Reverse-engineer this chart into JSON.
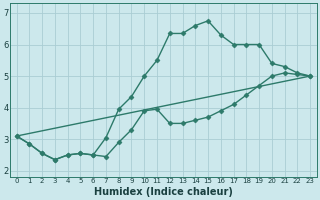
{
  "xlabel": "Humidex (Indice chaleur)",
  "bg_color": "#cce8ec",
  "grid_color": "#aacdd4",
  "line_color": "#2d7a6a",
  "xlim": [
    -0.5,
    23.5
  ],
  "ylim": [
    1.8,
    7.3
  ],
  "xticks": [
    0,
    1,
    2,
    3,
    4,
    5,
    6,
    7,
    8,
    9,
    10,
    11,
    12,
    13,
    14,
    15,
    16,
    17,
    18,
    19,
    20,
    21,
    22,
    23
  ],
  "yticks": [
    2,
    3,
    4,
    5,
    6,
    7
  ],
  "line1_x": [
    0,
    1,
    2,
    3,
    4,
    5,
    6,
    7,
    8,
    9,
    10,
    11,
    12,
    13,
    14,
    15,
    16,
    17,
    18,
    19,
    20,
    21,
    22,
    23
  ],
  "line1_y": [
    3.1,
    2.85,
    2.55,
    2.35,
    2.5,
    2.55,
    2.5,
    2.45,
    2.9,
    3.3,
    3.9,
    3.95,
    3.5,
    3.5,
    3.6,
    3.7,
    3.9,
    4.1,
    4.4,
    4.7,
    5.0,
    5.1,
    5.05,
    5.0
  ],
  "line2_x": [
    0,
    1,
    2,
    3,
    4,
    5,
    6,
    7,
    8,
    9,
    10,
    11,
    12,
    13,
    14,
    15,
    16,
    17,
    18,
    19,
    20,
    21,
    22,
    23
  ],
  "line2_y": [
    3.1,
    2.85,
    2.55,
    2.35,
    2.5,
    2.55,
    2.5,
    3.05,
    3.95,
    4.35,
    5.0,
    5.5,
    6.35,
    6.35,
    6.6,
    6.75,
    6.3,
    6.0,
    6.0,
    6.0,
    5.4,
    5.3,
    5.1,
    5.0
  ],
  "line3_x": [
    0,
    23
  ],
  "line3_y": [
    3.1,
    5.0
  ],
  "marker": "D",
  "markersize": 2.5,
  "linewidth": 1.0,
  "xlabel_fontsize": 7,
  "xlabel_fontweight": "bold",
  "tick_fontsize_x": 5.0,
  "tick_fontsize_y": 6.0
}
